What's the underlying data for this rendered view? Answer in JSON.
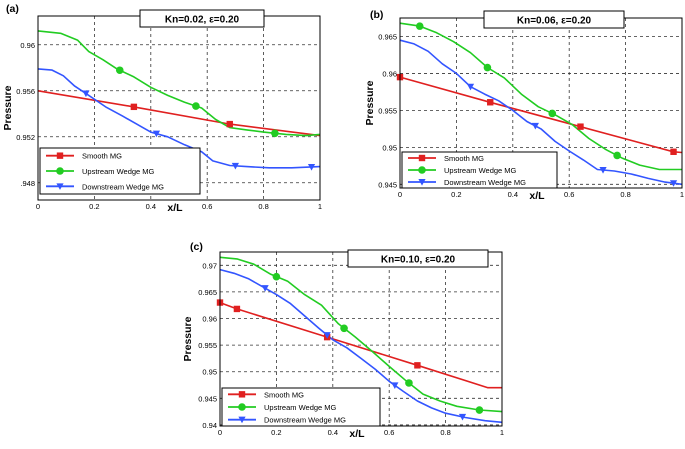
{
  "chart_data": [
    {
      "panel": "(a)",
      "type": "line",
      "annotation": "Kn=0.02, ε=0.20",
      "xlabel": "x/L",
      "ylabel": "Pressure",
      "xlim": [
        0,
        1
      ],
      "ylim": [
        0.9465,
        0.9625
      ],
      "xticks": [
        0,
        0.2,
        0.4,
        0.6,
        0.8,
        1
      ],
      "xtick_labels": [
        "0",
        "0.2",
        "0.4",
        "0.6",
        "0.8",
        "1"
      ],
      "yticks": [
        0.948,
        0.952,
        0.956,
        0.96
      ],
      "ytick_labels": [
        ".948",
        "0.952",
        "0.956",
        "0.96"
      ],
      "legend": [
        "Smooth MG",
        "Upstream Wedge MG",
        "Downstream Wedge MG"
      ],
      "series": [
        {
          "name": "Smooth MG",
          "color": "#e02020",
          "marker": "square",
          "x": [
            0,
            0.34,
            0.68,
            1.0
          ],
          "y": [
            0.956,
            0.9546,
            0.9531,
            0.9521
          ],
          "markers_x": [
            0.34,
            0.68
          ]
        },
        {
          "name": "Upstream Wedge MG",
          "color": "#22cc22",
          "marker": "circle",
          "x": [
            0,
            0.08,
            0.14,
            0.18,
            0.23,
            0.28,
            0.34,
            0.4,
            0.46,
            0.52,
            0.58,
            0.63,
            0.68,
            0.74,
            0.8,
            0.88,
            0.95,
            1.0
          ],
          "y": [
            0.9612,
            0.961,
            0.9604,
            0.9594,
            0.9587,
            0.9579,
            0.9572,
            0.9563,
            0.9556,
            0.955,
            0.9545,
            0.9535,
            0.9528,
            0.9526,
            0.9524,
            0.9522,
            0.9521,
            0.9522
          ],
          "markers_x": [
            0.29,
            0.56,
            0.84
          ]
        },
        {
          "name": "Downstream Wedge MG",
          "color": "#3355ff",
          "marker": "triangle",
          "x": [
            0,
            0.05,
            0.09,
            0.13,
            0.18,
            0.24,
            0.3,
            0.35,
            0.4,
            0.46,
            0.52,
            0.58,
            0.62,
            0.68,
            0.74,
            0.82,
            0.9,
            1.0
          ],
          "y": [
            0.9579,
            0.9578,
            0.9573,
            0.9564,
            0.9556,
            0.9546,
            0.9538,
            0.9531,
            0.9524,
            0.952,
            0.9513,
            0.9507,
            0.9499,
            0.9495,
            0.9494,
            0.9493,
            0.9493,
            0.9494
          ],
          "markers_x": [
            0.17,
            0.42,
            0.7,
            0.97
          ]
        }
      ]
    },
    {
      "panel": "(b)",
      "type": "line",
      "annotation": "Kn=0.06, ε=0.20",
      "xlabel": "x/L",
      "ylabel": "Pressure",
      "xlim": [
        0,
        1
      ],
      "ylim": [
        0.9445,
        0.9675
      ],
      "xticks": [
        0,
        0.2,
        0.4,
        0.6,
        0.8,
        1
      ],
      "xtick_labels": [
        "0",
        "0.2",
        "0.4",
        "0.6",
        "0.8",
        "1"
      ],
      "yticks": [
        0.945,
        0.95,
        0.955,
        0.96,
        0.965
      ],
      "ytick_labels": [
        "0.945",
        "0.95",
        "0.955",
        "0.96",
        "0.965"
      ],
      "legend": [
        "Smooth MG",
        "Upstream Wedge MG",
        "Downstream Wedge MG"
      ],
      "series": [
        {
          "name": "Smooth MG",
          "color": "#e02020",
          "marker": "square",
          "x": [
            0,
            0.32,
            0.64,
            0.97,
            1.0
          ],
          "y": [
            0.9595,
            0.9561,
            0.9528,
            0.9494,
            0.9493
          ],
          "markers_x": [
            0,
            0.32,
            0.64,
            0.97
          ]
        },
        {
          "name": "Upstream Wedge MG",
          "color": "#22cc22",
          "marker": "circle",
          "x": [
            0,
            0.07,
            0.13,
            0.19,
            0.25,
            0.31,
            0.37,
            0.43,
            0.49,
            0.55,
            0.61,
            0.67,
            0.73,
            0.79,
            0.85,
            0.92,
            1.0
          ],
          "y": [
            0.9668,
            0.9664,
            0.9655,
            0.9643,
            0.9628,
            0.9608,
            0.9594,
            0.9572,
            0.9555,
            0.9544,
            0.9531,
            0.9512,
            0.9497,
            0.9485,
            0.9476,
            0.947,
            0.947
          ],
          "markers_x": [
            0.07,
            0.31,
            0.54,
            0.77
          ]
        },
        {
          "name": "Downstream Wedge MG",
          "color": "#3355ff",
          "marker": "triangle",
          "x": [
            0,
            0.05,
            0.1,
            0.15,
            0.2,
            0.25,
            0.3,
            0.35,
            0.4,
            0.45,
            0.5,
            0.55,
            0.6,
            0.65,
            0.7,
            0.76,
            0.82,
            0.88,
            0.94,
            1.0
          ],
          "y": [
            0.9645,
            0.964,
            0.963,
            0.9613,
            0.96,
            0.9582,
            0.9572,
            0.9563,
            0.955,
            0.9535,
            0.9525,
            0.9508,
            0.9495,
            0.9483,
            0.947,
            0.9468,
            0.9464,
            0.9458,
            0.9453,
            0.945
          ],
          "markers_x": [
            0.25,
            0.48,
            0.72,
            0.97
          ]
        }
      ]
    },
    {
      "panel": "(c)",
      "type": "line",
      "annotation": "Kn=0.10, ε=0.20",
      "xlabel": "x/L",
      "ylabel": "Pressure",
      "xlim": [
        0,
        1
      ],
      "ylim": [
        0.9398,
        0.9725
      ],
      "xticks": [
        0,
        0.2,
        0.4,
        0.6,
        0.8,
        1
      ],
      "xtick_labels": [
        "0",
        "0.2",
        "0.4",
        "0.6",
        "0.8",
        "1"
      ],
      "yticks": [
        0.94,
        0.945,
        0.95,
        0.955,
        0.96,
        0.965,
        0.97
      ],
      "ytick_labels": [
        "0.94",
        "0.945",
        "0.95",
        "0.955",
        "0.96",
        "0.965",
        "0.97"
      ],
      "legend": [
        "Smooth MG",
        "Upstream Wedge MG",
        "Downstream Wedge MG"
      ],
      "series": [
        {
          "name": "Smooth MG",
          "color": "#e02020",
          "marker": "square",
          "x": [
            0,
            0.06,
            0.38,
            0.7,
            0.95,
            1.0
          ],
          "y": [
            0.963,
            0.9618,
            0.9565,
            0.9512,
            0.947,
            0.947
          ],
          "markers_x": [
            0,
            0.06,
            0.38,
            0.7
          ]
        },
        {
          "name": "Upstream Wedge MG",
          "color": "#22cc22",
          "marker": "circle",
          "x": [
            0,
            0.06,
            0.12,
            0.18,
            0.24,
            0.3,
            0.36,
            0.42,
            0.48,
            0.54,
            0.6,
            0.66,
            0.72,
            0.78,
            0.84,
            0.92,
            1.0
          ],
          "y": [
            0.9715,
            0.9712,
            0.9702,
            0.9683,
            0.967,
            0.9645,
            0.9625,
            0.959,
            0.9565,
            0.9538,
            0.951,
            0.9483,
            0.9458,
            0.9445,
            0.9435,
            0.9428,
            0.9425
          ],
          "markers_x": [
            0.2,
            0.44,
            0.67,
            0.92
          ]
        },
        {
          "name": "Downstream Wedge MG",
          "color": "#3355ff",
          "marker": "triangle",
          "x": [
            0,
            0.05,
            0.1,
            0.15,
            0.2,
            0.25,
            0.3,
            0.35,
            0.4,
            0.45,
            0.5,
            0.55,
            0.6,
            0.65,
            0.7,
            0.75,
            0.8,
            0.87,
            0.94,
            1.0
          ],
          "y": [
            0.9692,
            0.9685,
            0.9675,
            0.966,
            0.9645,
            0.9628,
            0.9605,
            0.9582,
            0.956,
            0.9545,
            0.9525,
            0.9505,
            0.9482,
            0.9463,
            0.9445,
            0.9432,
            0.9422,
            0.9414,
            0.9408,
            0.9405
          ],
          "markers_x": [
            0.16,
            0.38,
            0.62,
            0.86
          ]
        }
      ]
    }
  ]
}
